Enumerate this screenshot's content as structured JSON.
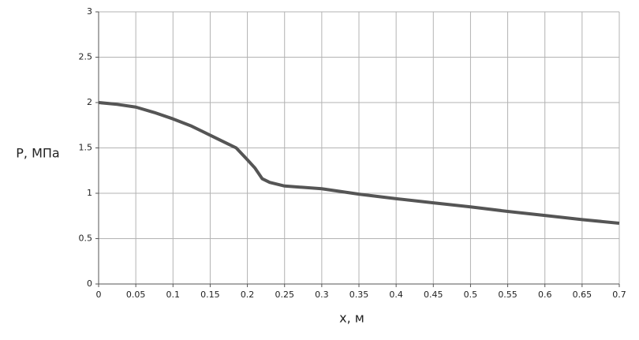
{
  "chart_data": {
    "type": "line",
    "xlabel": "x, м",
    "ylabel": "P, МПа",
    "x": [
      0,
      0.025,
      0.05,
      0.075,
      0.1,
      0.125,
      0.15,
      0.175,
      0.185,
      0.2,
      0.21,
      0.22,
      0.23,
      0.25,
      0.3,
      0.35,
      0.4,
      0.45,
      0.5,
      0.55,
      0.6,
      0.65,
      0.7
    ],
    "series": [
      {
        "color": "#555555",
        "values": [
          2.0,
          1.98,
          1.95,
          1.89,
          1.82,
          1.74,
          1.64,
          1.54,
          1.5,
          1.37,
          1.28,
          1.16,
          1.12,
          1.08,
          1.05,
          0.99,
          0.94,
          0.895,
          0.85,
          0.8,
          0.755,
          0.71,
          0.67
        ]
      }
    ],
    "xlim": [
      0,
      0.7
    ],
    "xticks": [
      0,
      0.05,
      0.1,
      0.15,
      0.2,
      0.25,
      0.3,
      0.35,
      0.4,
      0.45,
      0.5,
      0.55,
      0.6,
      0.65,
      0.7
    ],
    "ylim": [
      0,
      3
    ],
    "yticks": [
      0,
      0.5,
      1,
      1.5,
      2,
      2.5,
      3
    ],
    "grid": true
  }
}
